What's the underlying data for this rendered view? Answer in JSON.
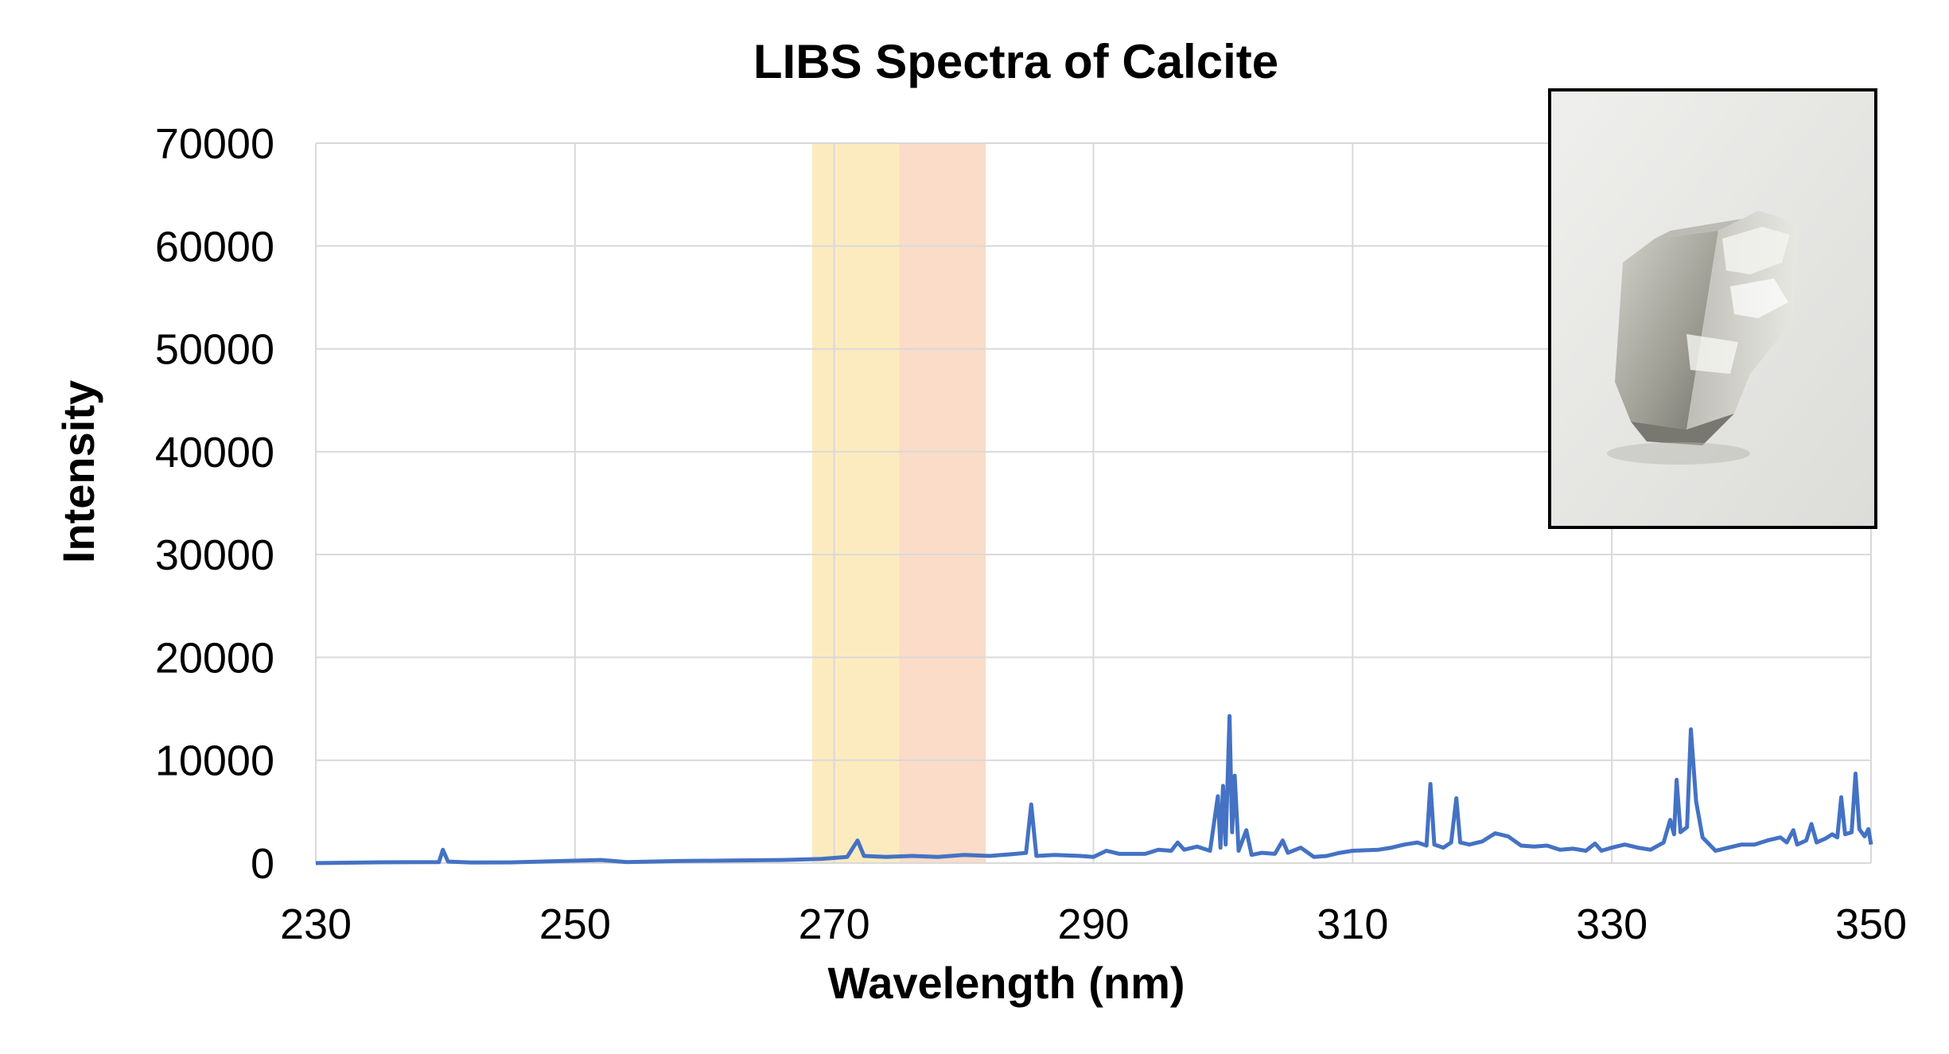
{
  "chart_data": {
    "type": "line",
    "title": "LIBS Spectra of Calcite",
    "xlabel": "Wavelength (nm)",
    "ylabel": "Intensity",
    "xlim": [
      230,
      350
    ],
    "ylim": [
      0,
      70000
    ],
    "x_ticks": [
      230,
      250,
      270,
      290,
      310,
      330,
      350
    ],
    "y_ticks": [
      0,
      10000,
      20000,
      30000,
      40000,
      50000,
      60000,
      70000
    ],
    "grid": true,
    "legend": "none",
    "highlight_bands": [
      {
        "x_start": 268.3,
        "x_end": 275.0,
        "color": "#fdebc0"
      },
      {
        "x_start": 275.0,
        "x_end": 281.7,
        "color": "#fbdcc8"
      }
    ],
    "inset_image": {
      "description_icon": "calcite-crystal-photo",
      "position": "top-right"
    },
    "series": [
      {
        "color": "#4472c4",
        "points": [
          [
            230.0,
            0
          ],
          [
            235.0,
            80
          ],
          [
            239.5,
            100
          ],
          [
            239.8,
            1300
          ],
          [
            240.2,
            150
          ],
          [
            242.0,
            60
          ],
          [
            245.0,
            70
          ],
          [
            249.0,
            200
          ],
          [
            252.0,
            300
          ],
          [
            254.0,
            100
          ],
          [
            258.0,
            200
          ],
          [
            262.0,
            250
          ],
          [
            266.0,
            300
          ],
          [
            269.0,
            400
          ],
          [
            271.0,
            600
          ],
          [
            271.8,
            2200
          ],
          [
            272.3,
            700
          ],
          [
            274.0,
            600
          ],
          [
            276.0,
            700
          ],
          [
            278.0,
            600
          ],
          [
            280.0,
            800
          ],
          [
            282.0,
            700
          ],
          [
            284.0,
            900
          ],
          [
            284.8,
            1000
          ],
          [
            285.2,
            5700
          ],
          [
            285.6,
            700
          ],
          [
            287.0,
            800
          ],
          [
            289.0,
            700
          ],
          [
            290.0,
            600
          ],
          [
            291.0,
            1200
          ],
          [
            292.0,
            900
          ],
          [
            294.0,
            900
          ],
          [
            295.0,
            1300
          ],
          [
            296.0,
            1200
          ],
          [
            296.5,
            2000
          ],
          [
            297.0,
            1300
          ],
          [
            298.0,
            1600
          ],
          [
            299.0,
            1200
          ],
          [
            299.6,
            6500
          ],
          [
            299.8,
            1500
          ],
          [
            300.0,
            7500
          ],
          [
            300.2,
            1800
          ],
          [
            300.5,
            14300
          ],
          [
            300.7,
            3000
          ],
          [
            300.9,
            8500
          ],
          [
            301.2,
            1200
          ],
          [
            301.8,
            3200
          ],
          [
            302.2,
            800
          ],
          [
            303.0,
            1000
          ],
          [
            304.0,
            900
          ],
          [
            304.6,
            2200
          ],
          [
            305.0,
            1000
          ],
          [
            306.0,
            1500
          ],
          [
            307.0,
            600
          ],
          [
            308.0,
            700
          ],
          [
            309.0,
            1000
          ],
          [
            310.0,
            1200
          ],
          [
            312.0,
            1300
          ],
          [
            313.0,
            1500
          ],
          [
            314.0,
            1800
          ],
          [
            315.0,
            2000
          ],
          [
            315.7,
            1700
          ],
          [
            316.0,
            7700
          ],
          [
            316.3,
            1800
          ],
          [
            317.0,
            1500
          ],
          [
            317.6,
            2000
          ],
          [
            318.0,
            6300
          ],
          [
            318.3,
            2000
          ],
          [
            319.0,
            1800
          ],
          [
            320.0,
            2100
          ],
          [
            321.0,
            2900
          ],
          [
            322.0,
            2600
          ],
          [
            323.0,
            1700
          ],
          [
            324.0,
            1600
          ],
          [
            325.0,
            1700
          ],
          [
            326.0,
            1300
          ],
          [
            327.0,
            1400
          ],
          [
            328.0,
            1200
          ],
          [
            328.7,
            1900
          ],
          [
            329.2,
            1200
          ],
          [
            330.0,
            1500
          ],
          [
            331.0,
            1800
          ],
          [
            332.0,
            1500
          ],
          [
            333.0,
            1300
          ],
          [
            334.0,
            2000
          ],
          [
            334.5,
            4200
          ],
          [
            334.8,
            2800
          ],
          [
            335.0,
            8100
          ],
          [
            335.3,
            3000
          ],
          [
            335.8,
            3500
          ],
          [
            336.1,
            13000
          ],
          [
            336.5,
            6000
          ],
          [
            337.0,
            2500
          ],
          [
            338.0,
            1200
          ],
          [
            339.0,
            1500
          ],
          [
            340.0,
            1800
          ],
          [
            341.0,
            1800
          ],
          [
            342.0,
            2200
          ],
          [
            343.0,
            2500
          ],
          [
            343.5,
            2000
          ],
          [
            344.0,
            3200
          ],
          [
            344.3,
            1800
          ],
          [
            345.0,
            2200
          ],
          [
            345.4,
            3800
          ],
          [
            345.8,
            2000
          ],
          [
            346.5,
            2400
          ],
          [
            347.0,
            2800
          ],
          [
            347.4,
            2500
          ],
          [
            347.7,
            6400
          ],
          [
            348.0,
            2800
          ],
          [
            348.5,
            3000
          ],
          [
            348.8,
            8700
          ],
          [
            349.1,
            3300
          ],
          [
            349.5,
            2600
          ],
          [
            349.8,
            3300
          ],
          [
            350.0,
            1800
          ]
        ]
      }
    ]
  }
}
